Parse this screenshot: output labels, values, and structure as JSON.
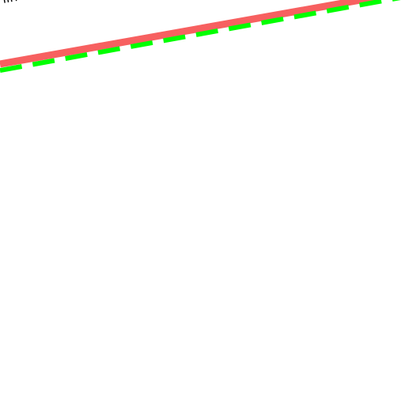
{
  "label": "lin"
}
